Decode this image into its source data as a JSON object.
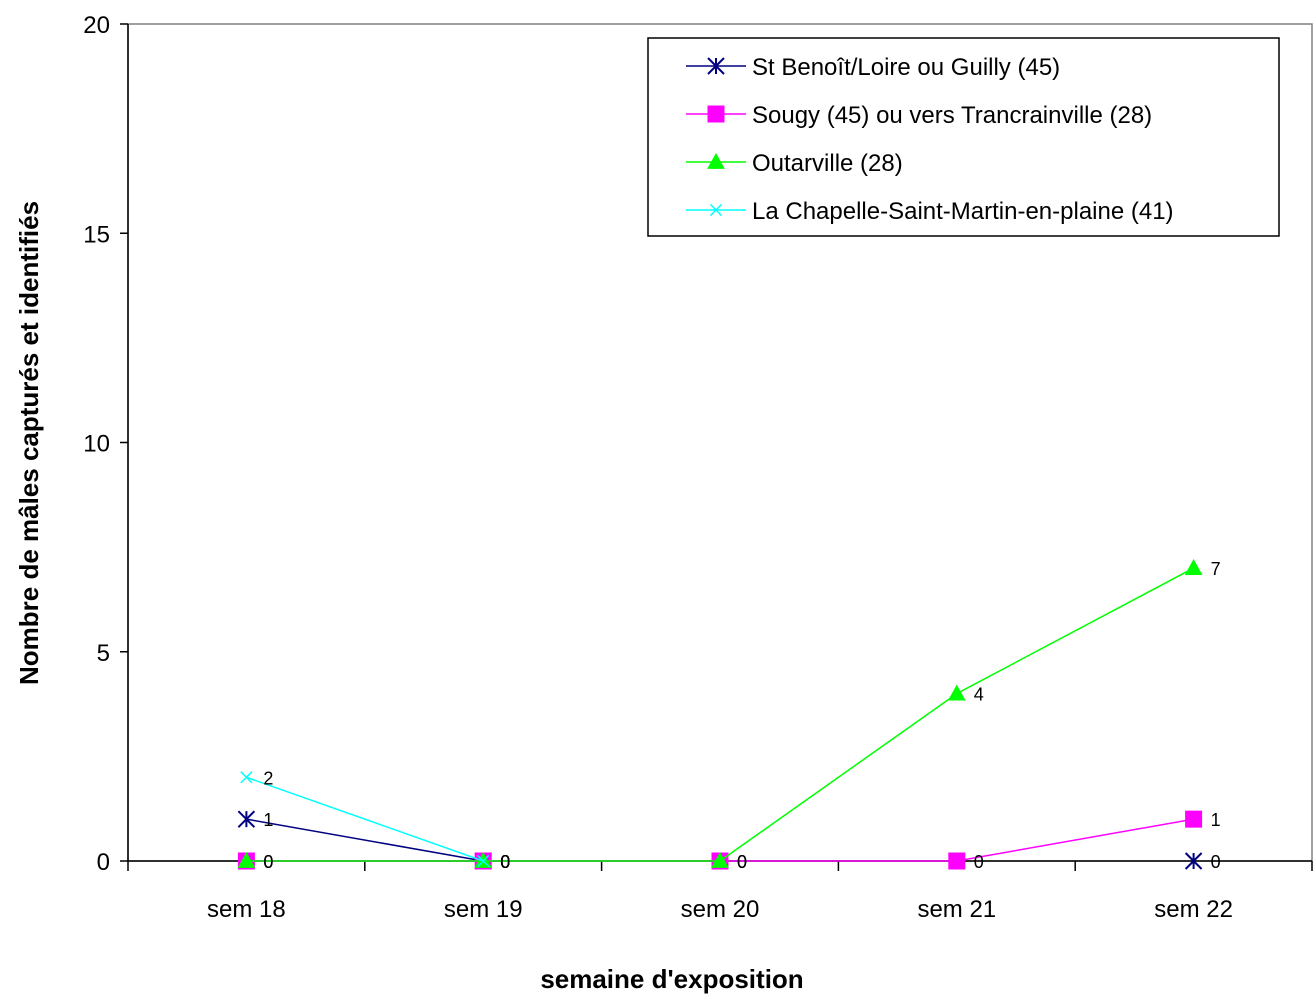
{
  "chart_data": {
    "type": "line",
    "xlabel": "semaine d'exposition",
    "ylabel": "Nombre de mâles capturés et identifiés",
    "categories": [
      "sem 18",
      "sem 19",
      "sem 20",
      "sem 21",
      "sem 22"
    ],
    "ylim": [
      0,
      20
    ],
    "yticks": [
      "0",
      "5",
      "10",
      "15",
      "20"
    ],
    "grid": false,
    "legend_position": "top-right",
    "series": [
      {
        "name": "St Benoît/Loire ou Guilly (45)",
        "values": [
          1,
          0,
          null,
          null,
          0
        ],
        "color": "#000080",
        "marker": "asterisk",
        "labels": [
          "1",
          "0",
          "",
          "",
          "0"
        ]
      },
      {
        "name": "Sougy (45) ou vers Trancrainville (28)",
        "values": [
          0,
          0,
          0,
          0,
          1
        ],
        "color": "#FF00FF",
        "marker": "square",
        "labels": [
          "0",
          "0",
          "0",
          "0",
          "1"
        ]
      },
      {
        "name": "Outarville (28)",
        "values": [
          0,
          0,
          0,
          4,
          7
        ],
        "color": "#00FF00",
        "marker": "triangle",
        "labels": [
          "0",
          "0",
          "0",
          "4",
          "7"
        ]
      },
      {
        "name": "La Chapelle-Saint-Martin-en-plaine  (41)",
        "values": [
          2,
          0,
          null,
          null,
          null
        ],
        "color": "#00FFFF",
        "marker": "x",
        "labels": [
          "2",
          "0",
          "",
          "",
          ""
        ]
      }
    ]
  }
}
